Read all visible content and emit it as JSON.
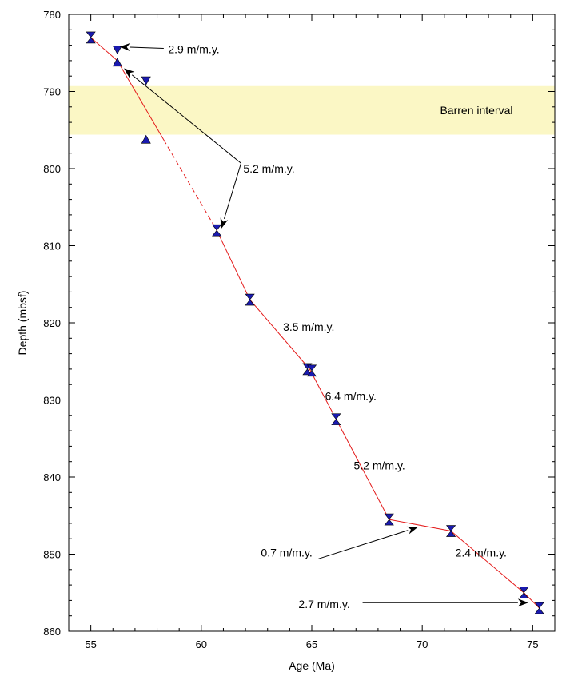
{
  "chart_data": {
    "type": "scatter",
    "xlabel": "Age (Ma)",
    "ylabel": "Depth (mbsf)",
    "xlim": [
      54,
      76
    ],
    "ylim": [
      780,
      860
    ],
    "y_inverted": true,
    "x_ticks": [
      55,
      60,
      65,
      70,
      75
    ],
    "y_ticks": [
      780,
      790,
      800,
      810,
      820,
      830,
      840,
      850,
      860
    ],
    "x_minor_step": 1,
    "y_minor_step": 2,
    "grid": false,
    "band": {
      "label": "Barren interval",
      "y_from": 789.3,
      "y_to": 795.6,
      "color": "#fbf7c5"
    },
    "series": [
      {
        "marker": "hourglass",
        "color": "#1a1ab0",
        "points": [
          {
            "x": 55.0,
            "y": 783.0
          },
          {
            "x": 60.7,
            "y": 808.0
          },
          {
            "x": 62.2,
            "y": 817.0
          },
          {
            "x": 64.8,
            "y": 826.0
          },
          {
            "x": 65.0,
            "y": 826.2
          },
          {
            "x": 66.1,
            "y": 832.5
          },
          {
            "x": 68.5,
            "y": 845.5
          },
          {
            "x": 71.3,
            "y": 847.0
          },
          {
            "x": 74.6,
            "y": 855.0
          },
          {
            "x": 75.3,
            "y": 857.0
          }
        ]
      },
      {
        "marker": "triangle-up",
        "color": "#1a1ab0",
        "points": [
          {
            "x": 56.2,
            "y": 786.2
          },
          {
            "x": 57.5,
            "y": 796.2
          }
        ]
      },
      {
        "marker": "triangle-down",
        "color": "#1a1ab0",
        "points": [
          {
            "x": 56.2,
            "y": 784.6
          },
          {
            "x": 57.5,
            "y": 788.6
          }
        ]
      }
    ],
    "trend_line": {
      "color": "#e41a1a",
      "points": [
        {
          "x": 55.0,
          "y": 783.0
        },
        {
          "x": 56.2,
          "y": 786.0
        },
        {
          "x": 60.7,
          "y": 808.0
        },
        {
          "x": 62.2,
          "y": 817.0
        },
        {
          "x": 64.9,
          "y": 826.0
        },
        {
          "x": 66.1,
          "y": 832.5
        },
        {
          "x": 68.5,
          "y": 845.5
        },
        {
          "x": 71.3,
          "y": 847.0
        },
        {
          "x": 74.6,
          "y": 855.0
        },
        {
          "x": 75.3,
          "y": 857.0
        }
      ],
      "dashed_from_x": 58.3,
      "dashed_to_x": 60.7
    },
    "annotations": [
      {
        "text": "2.9 m/m.y.",
        "x": 58.5,
        "y": 784.5
      },
      {
        "text": "5.2 m/m.y.",
        "x": 61.9,
        "y": 800.0
      },
      {
        "text": "3.5 m/m.y.",
        "x": 63.7,
        "y": 820.5
      },
      {
        "text": "6.4 m/m.y.",
        "x": 65.6,
        "y": 829.5
      },
      {
        "text": "5.2 m/m.y.",
        "x": 66.9,
        "y": 838.5
      },
      {
        "text": "0.7 m/m.y.",
        "x": 62.7,
        "y": 849.8
      },
      {
        "text": "2.4 m/m.y.",
        "x": 71.5,
        "y": 849.8
      },
      {
        "text": "2.7 m/m.y.",
        "x": 64.4,
        "y": 856.5
      }
    ],
    "arrows": [
      {
        "from": [
          58.3,
          784.4
        ],
        "to": [
          56.3,
          784.2
        ]
      },
      {
        "from": [
          61.8,
          799.3
        ],
        "to": [
          56.5,
          787.0
        ]
      },
      {
        "from": [
          61.8,
          799.3
        ],
        "to": [
          60.9,
          807.8
        ]
      },
      {
        "from": [
          65.3,
          850.6
        ],
        "to": [
          69.8,
          846.5
        ]
      },
      {
        "from": [
          67.3,
          856.3
        ],
        "to": [
          74.8,
          856.3
        ]
      }
    ]
  }
}
